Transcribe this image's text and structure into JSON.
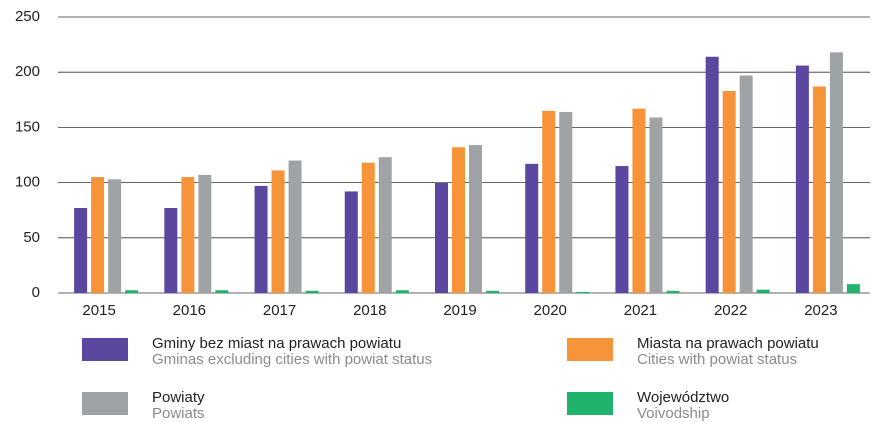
{
  "chart_data": {
    "type": "bar",
    "categories": [
      "2015",
      "2016",
      "2017",
      "2018",
      "2019",
      "2020",
      "2021",
      "2022",
      "2023"
    ],
    "series": [
      {
        "name": "Gminy bez miast na prawach powiatu",
        "name_en": "Gminas excluding cities with powiat status",
        "color": "#5b47a0",
        "values": [
          77,
          77,
          97,
          92,
          100,
          117,
          115,
          214,
          206
        ]
      },
      {
        "name": "Miasta na prawach powiatu",
        "name_en": "Cities with powiat status",
        "color": "#f7943a",
        "values": [
          105,
          105,
          111,
          118,
          132,
          165,
          167,
          183,
          187
        ]
      },
      {
        "name": "Powiaty",
        "name_en": "Powiats",
        "color": "#a0a3a5",
        "values": [
          103,
          107,
          120,
          123,
          134,
          164,
          159,
          197,
          218
        ]
      },
      {
        "name": "Województwo",
        "name_en": "Voivodship",
        "color": "#1fb36b",
        "values": [
          2.5,
          2.5,
          2,
          2.5,
          2,
          1,
          2,
          3,
          8
        ]
      }
    ],
    "ylim": [
      0,
      250
    ],
    "yticks": [
      0,
      50,
      100,
      150,
      200,
      250
    ],
    "grid": true
  }
}
